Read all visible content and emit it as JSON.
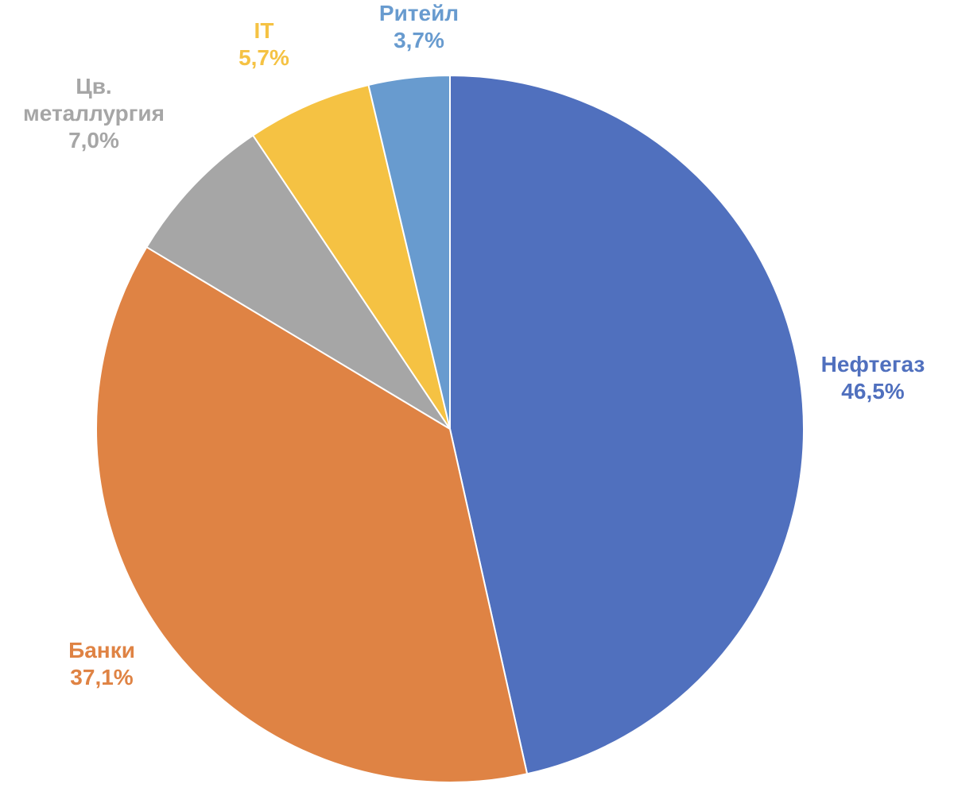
{
  "chart_data": {
    "type": "pie",
    "title": "",
    "start_angle_deg": 0,
    "direction": "clockwise",
    "slices": [
      {
        "name": "Нефтегаз",
        "value": 46.5,
        "label_lines": [
          "Нефтегаз"
        ],
        "value_label": "46,5%",
        "color": "#5070BE"
      },
      {
        "name": "Банки",
        "value": 37.1,
        "label_lines": [
          "Банки"
        ],
        "value_label": "37,1%",
        "color": "#DF8344"
      },
      {
        "name": "Цв. металлургия",
        "value": 7.0,
        "label_lines": [
          "Цв.",
          "металлургия"
        ],
        "value_label": "7,0%",
        "color": "#A6A6A6"
      },
      {
        "name": "IT",
        "value": 5.7,
        "label_lines": [
          "IT"
        ],
        "value_label": "5,7%",
        "color": "#F5C243"
      },
      {
        "name": "Ритейл",
        "value": 3.7,
        "label_lines": [
          "Ритейл"
        ],
        "value_label": "3,7%",
        "color": "#689BCF"
      }
    ],
    "legend": "none"
  }
}
